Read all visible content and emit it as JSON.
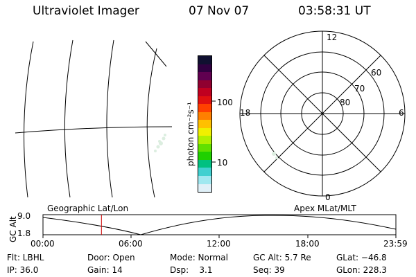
{
  "header": {
    "title": "Ultraviolet Imager",
    "date": "07 Nov 07",
    "time": "03:58:31 UT"
  },
  "colorbar": {
    "label": "photon cm⁻²s⁻¹",
    "ticks": [
      "100",
      "10"
    ],
    "colors": [
      "#101030",
      "#300040",
      "#600050",
      "#900030",
      "#c00020",
      "#e01010",
      "#ff4000",
      "#ff8000",
      "#ffc000",
      "#f0f000",
      "#b0f000",
      "#60e000",
      "#20d000",
      "#00c080",
      "#40d0d0",
      "#a0e8f0",
      "#e0f0f8"
    ]
  },
  "polar_plot": {
    "mlt_labels": {
      "top": "12",
      "bottom": "0",
      "left": "18",
      "right": "6"
    },
    "lat_labels": [
      "60",
      "70",
      "80"
    ]
  },
  "timeline": {
    "ylabel": "GC Alt",
    "yticks": [
      "9.0",
      "1.8"
    ],
    "left_caption": "Geographic Lat/Lon",
    "right_caption": "Apex MLat/MLT",
    "xticks": [
      "00:00",
      "06:00",
      "12:00",
      "18:00",
      "23:59"
    ],
    "marker_time_hours": 3.975
  },
  "info": {
    "row1": {
      "flt": "Flt: LBHL",
      "door": "Door: Open",
      "mode": "Mode: Normal",
      "gcalt": "GC Alt: 5.7 Re",
      "glat": "GLat: −46.8"
    },
    "row2": {
      "ip": "IP: 36.0",
      "gain": "Gain: 14",
      "dsp": "Dsp:    3.1",
      "seq": "Seq: 39",
      "glon": "GLon: 228.3"
    }
  }
}
